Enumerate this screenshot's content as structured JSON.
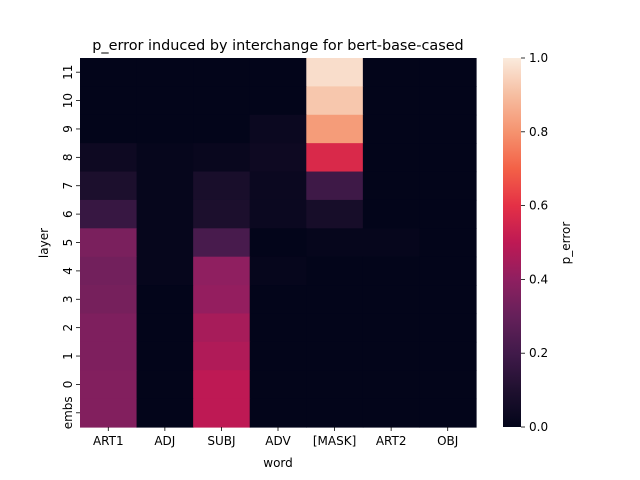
{
  "chart_data": {
    "type": "heatmap",
    "title": "p_error induced by interchange for bert-base-cased",
    "xlabel": "word",
    "ylabel": "layer",
    "colorbar_label": "p_error",
    "colormap": "rocket",
    "vmin": 0.0,
    "vmax": 1.0,
    "colorbar_ticks": [
      "0.0",
      "0.2",
      "0.4",
      "0.6",
      "0.8",
      "1.0"
    ],
    "x_categories": [
      "ART1",
      "ADJ",
      "SUBJ",
      "ADV",
      "[MASK]",
      "ART2",
      "OBJ"
    ],
    "y_categories": [
      "11",
      "10",
      "9",
      "8",
      "7",
      "6",
      "5",
      "4",
      "3",
      "2",
      "1",
      "0",
      "embs"
    ],
    "values": [
      [
        0.0,
        0.0,
        0.0,
        0.0,
        0.97,
        0.0,
        0.0
      ],
      [
        0.0,
        0.0,
        0.0,
        0.0,
        0.92,
        0.0,
        0.0
      ],
      [
        0.0,
        0.0,
        0.0,
        0.03,
        0.82,
        0.0,
        0.0
      ],
      [
        0.04,
        0.01,
        0.02,
        0.04,
        0.57,
        0.0,
        0.0
      ],
      [
        0.09,
        0.01,
        0.08,
        0.03,
        0.19,
        0.0,
        0.0
      ],
      [
        0.17,
        0.01,
        0.09,
        0.03,
        0.07,
        0.0,
        0.0
      ],
      [
        0.35,
        0.01,
        0.22,
        0.0,
        0.01,
        0.01,
        0.0
      ],
      [
        0.33,
        0.01,
        0.4,
        0.01,
        0.0,
        0.0,
        0.0
      ],
      [
        0.34,
        0.0,
        0.41,
        0.0,
        0.0,
        0.0,
        0.0
      ],
      [
        0.36,
        0.0,
        0.45,
        0.0,
        0.0,
        0.0,
        0.0
      ],
      [
        0.36,
        0.0,
        0.47,
        0.0,
        0.0,
        0.0,
        0.0
      ],
      [
        0.37,
        0.0,
        0.5,
        0.0,
        0.0,
        0.0,
        0.0
      ],
      [
        0.37,
        0.0,
        0.5,
        0.0,
        0.0,
        0.0,
        0.0
      ]
    ]
  }
}
